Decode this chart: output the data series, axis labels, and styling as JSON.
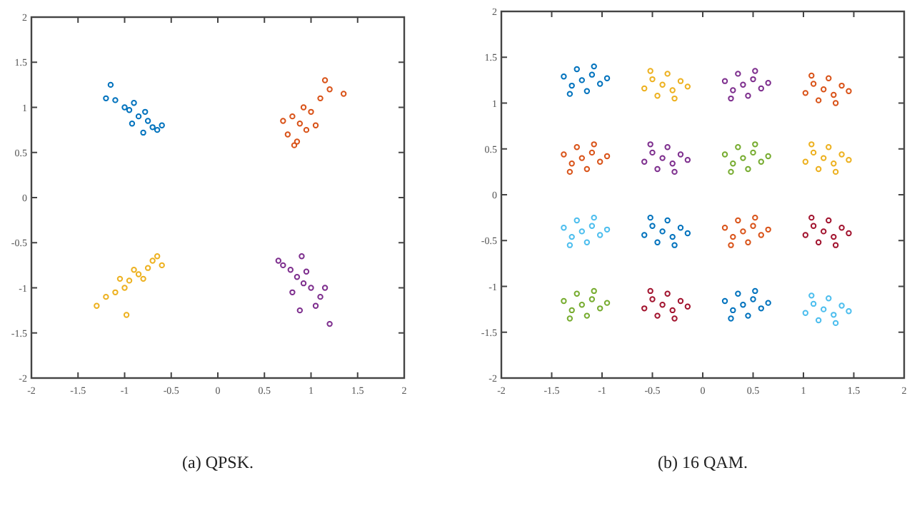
{
  "chart_data": [
    {
      "type": "scatter",
      "title": "(a) QPSK.",
      "xlim": [
        -2,
        2
      ],
      "ylim": [
        -2,
        2
      ],
      "xticks": [
        -2,
        -1.5,
        -1,
        -0.5,
        0,
        0.5,
        1,
        1.5,
        2
      ],
      "yticks": [
        -2,
        -1.5,
        -1,
        -0.5,
        0,
        0.5,
        1,
        1.5,
        2
      ],
      "grid": false,
      "marker": "circle",
      "series": [
        {
          "color": "#0072bd",
          "x": [
            -0.85,
            -0.75,
            -0.95,
            -0.7,
            -1.0,
            -0.65,
            -1.1,
            -0.8,
            -0.9,
            -0.6,
            -1.15,
            -0.78,
            -0.92,
            -1.2
          ],
          "values": [
            0.9,
            0.85,
            0.97,
            0.78,
            1.0,
            0.75,
            1.08,
            0.72,
            1.05,
            0.8,
            1.25,
            0.95,
            0.82,
            1.1
          ]
        },
        {
          "color": "#d95319",
          "x": [
            0.88,
            0.8,
            0.95,
            0.75,
            1.0,
            0.85,
            0.92,
            1.1,
            1.2,
            1.35,
            0.7,
            1.05,
            0.82,
            1.15
          ],
          "values": [
            0.82,
            0.9,
            0.75,
            0.7,
            0.95,
            0.62,
            1.0,
            1.1,
            1.2,
            1.15,
            0.85,
            0.8,
            0.58,
            1.3
          ]
        },
        {
          "color": "#edb120",
          "x": [
            -0.85,
            -0.75,
            -0.95,
            -0.7,
            -1.0,
            -1.1,
            -1.2,
            -1.3,
            -0.65,
            -0.8,
            -0.9,
            -1.05,
            -0.6,
            -0.98
          ],
          "values": [
            -0.85,
            -0.78,
            -0.92,
            -0.7,
            -1.0,
            -1.05,
            -1.1,
            -1.2,
            -0.65,
            -0.9,
            -0.8,
            -0.9,
            -0.75,
            -1.3
          ]
        },
        {
          "color": "#7e2f8e",
          "x": [
            0.85,
            0.78,
            0.92,
            0.7,
            0.95,
            1.0,
            1.1,
            1.2,
            0.8,
            0.65,
            0.9,
            1.05,
            1.15,
            0.88
          ],
          "values": [
            -0.88,
            -0.8,
            -0.95,
            -0.75,
            -0.82,
            -1.0,
            -1.1,
            -1.4,
            -1.05,
            -0.7,
            -0.65,
            -1.2,
            -1.0,
            -1.25
          ]
        }
      ]
    },
    {
      "type": "scatter",
      "title": "(b) 16 QAM.",
      "xlim": [
        -2,
        2
      ],
      "ylim": [
        -2,
        2
      ],
      "xticks": [
        -2,
        -1.5,
        -1,
        -0.5,
        0,
        0.5,
        1,
        1.5,
        2
      ],
      "yticks": [
        -2,
        -1.5,
        -1,
        -0.5,
        0,
        0.5,
        1,
        1.5,
        2
      ],
      "grid": false,
      "marker": "circle",
      "series": [
        {
          "color": "#0072bd",
          "x": [
            -1.2,
            -1.1,
            -1.3,
            -1.15,
            -1.25,
            -1.02,
            -1.38,
            -1.08,
            -1.32,
            -0.95
          ],
          "values": [
            1.25,
            1.31,
            1.19,
            1.13,
            1.37,
            1.21,
            1.29,
            1.4,
            1.1,
            1.27
          ]
        },
        {
          "color": "#edb120",
          "x": [
            -0.4,
            -0.3,
            -0.5,
            -0.35,
            -0.45,
            -0.22,
            -0.58,
            -0.28,
            -0.52,
            -0.15
          ],
          "values": [
            1.2,
            1.14,
            1.26,
            1.32,
            1.08,
            1.24,
            1.16,
            1.05,
            1.35,
            1.18
          ]
        },
        {
          "color": "#7e2f8e",
          "x": [
            0.4,
            0.5,
            0.3,
            0.45,
            0.35,
            0.58,
            0.22,
            0.52,
            0.28,
            0.65
          ],
          "values": [
            1.2,
            1.26,
            1.14,
            1.08,
            1.32,
            1.16,
            1.24,
            1.35,
            1.05,
            1.22
          ]
        },
        {
          "color": "#d95319",
          "x": [
            1.2,
            1.3,
            1.1,
            1.25,
            1.15,
            1.38,
            1.02,
            1.32,
            1.08,
            1.45
          ],
          "values": [
            1.15,
            1.09,
            1.21,
            1.27,
            1.03,
            1.19,
            1.11,
            1.0,
            1.3,
            1.13
          ]
        },
        {
          "color": "#d95319",
          "x": [
            -1.2,
            -1.1,
            -1.3,
            -1.15,
            -1.25,
            -1.02,
            -1.38,
            -1.08,
            -1.32,
            -0.95
          ],
          "values": [
            0.4,
            0.46,
            0.34,
            0.28,
            0.52,
            0.36,
            0.44,
            0.55,
            0.25,
            0.42
          ]
        },
        {
          "color": "#7e2f8e",
          "x": [
            -0.4,
            -0.3,
            -0.5,
            -0.35,
            -0.45,
            -0.22,
            -0.58,
            -0.28,
            -0.52,
            -0.15
          ],
          "values": [
            0.4,
            0.34,
            0.46,
            0.52,
            0.28,
            0.44,
            0.36,
            0.25,
            0.55,
            0.38
          ]
        },
        {
          "color": "#77ac30",
          "x": [
            0.4,
            0.5,
            0.3,
            0.45,
            0.35,
            0.58,
            0.22,
            0.52,
            0.28,
            0.65
          ],
          "values": [
            0.4,
            0.46,
            0.34,
            0.28,
            0.52,
            0.36,
            0.44,
            0.55,
            0.25,
            0.42
          ]
        },
        {
          "color": "#edb120",
          "x": [
            1.2,
            1.3,
            1.1,
            1.25,
            1.15,
            1.38,
            1.02,
            1.32,
            1.08,
            1.45
          ],
          "values": [
            0.4,
            0.34,
            0.46,
            0.52,
            0.28,
            0.44,
            0.36,
            0.25,
            0.55,
            0.38
          ]
        },
        {
          "color": "#4dbeee",
          "x": [
            -1.2,
            -1.1,
            -1.3,
            -1.15,
            -1.25,
            -1.02,
            -1.38,
            -1.08,
            -1.32,
            -0.95
          ],
          "values": [
            -0.4,
            -0.34,
            -0.46,
            -0.52,
            -0.28,
            -0.44,
            -0.36,
            -0.25,
            -0.55,
            -0.38
          ]
        },
        {
          "color": "#0072bd",
          "x": [
            -0.4,
            -0.3,
            -0.5,
            -0.35,
            -0.45,
            -0.22,
            -0.58,
            -0.28,
            -0.52,
            -0.15
          ],
          "values": [
            -0.4,
            -0.46,
            -0.34,
            -0.28,
            -0.52,
            -0.36,
            -0.44,
            -0.55,
            -0.25,
            -0.42
          ]
        },
        {
          "color": "#d95319",
          "x": [
            0.4,
            0.5,
            0.3,
            0.45,
            0.35,
            0.58,
            0.22,
            0.52,
            0.28,
            0.65
          ],
          "values": [
            -0.4,
            -0.34,
            -0.46,
            -0.52,
            -0.28,
            -0.44,
            -0.36,
            -0.25,
            -0.55,
            -0.38
          ]
        },
        {
          "color": "#a2142f",
          "x": [
            1.2,
            1.3,
            1.1,
            1.25,
            1.15,
            1.38,
            1.02,
            1.32,
            1.08,
            1.45
          ],
          "values": [
            -0.4,
            -0.46,
            -0.34,
            -0.28,
            -0.52,
            -0.36,
            -0.44,
            -0.55,
            -0.25,
            -0.42
          ]
        },
        {
          "color": "#77ac30",
          "x": [
            -1.2,
            -1.1,
            -1.3,
            -1.15,
            -1.25,
            -1.02,
            -1.38,
            -1.08,
            -1.32,
            -0.95
          ],
          "values": [
            -1.2,
            -1.14,
            -1.26,
            -1.32,
            -1.08,
            -1.24,
            -1.16,
            -1.05,
            -1.35,
            -1.18
          ]
        },
        {
          "color": "#a2142f",
          "x": [
            -0.4,
            -0.3,
            -0.5,
            -0.35,
            -0.45,
            -0.22,
            -0.58,
            -0.28,
            -0.52,
            -0.15
          ],
          "values": [
            -1.2,
            -1.26,
            -1.14,
            -1.08,
            -1.32,
            -1.16,
            -1.24,
            -1.35,
            -1.05,
            -1.22
          ]
        },
        {
          "color": "#0072bd",
          "x": [
            0.4,
            0.5,
            0.3,
            0.45,
            0.35,
            0.58,
            0.22,
            0.52,
            0.28,
            0.65
          ],
          "values": [
            -1.2,
            -1.14,
            -1.26,
            -1.32,
            -1.08,
            -1.24,
            -1.16,
            -1.05,
            -1.35,
            -1.18
          ]
        },
        {
          "color": "#4dbeee",
          "x": [
            1.2,
            1.3,
            1.1,
            1.25,
            1.15,
            1.38,
            1.02,
            1.32,
            1.08,
            1.45
          ],
          "values": [
            -1.25,
            -1.31,
            -1.19,
            -1.13,
            -1.37,
            -1.21,
            -1.29,
            -1.4,
            -1.1,
            -1.27
          ]
        }
      ]
    }
  ]
}
